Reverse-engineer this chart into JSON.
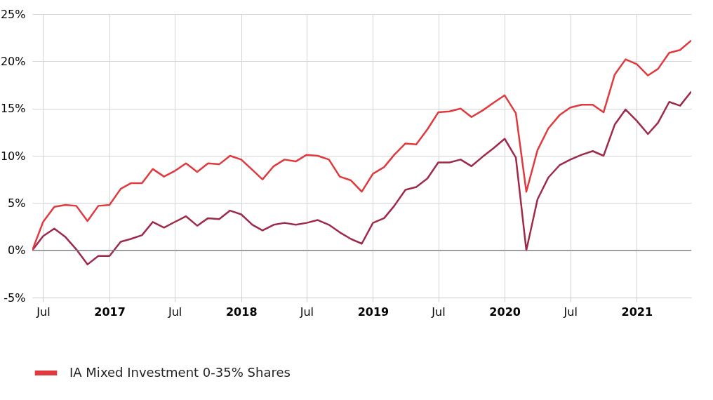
{
  "chart_data": {
    "type": "line",
    "x": [
      "2016-06",
      "2016-07",
      "2016-08",
      "2016-09",
      "2016-10",
      "2016-11",
      "2016-12",
      "2017-01",
      "2017-02",
      "2017-03",
      "2017-04",
      "2017-05",
      "2017-06",
      "2017-07",
      "2017-08",
      "2017-09",
      "2017-10",
      "2017-11",
      "2017-12",
      "2018-01",
      "2018-02",
      "2018-03",
      "2018-04",
      "2018-05",
      "2018-06",
      "2018-07",
      "2018-08",
      "2018-09",
      "2018-10",
      "2018-11",
      "2018-12",
      "2019-01",
      "2019-02",
      "2019-03",
      "2019-04",
      "2019-05",
      "2019-06",
      "2019-07",
      "2019-08",
      "2019-09",
      "2019-10",
      "2019-11",
      "2019-12",
      "2020-01",
      "2020-02",
      "2020-03",
      "2020-04",
      "2020-05",
      "2020-06",
      "2020-07",
      "2020-08",
      "2020-09",
      "2020-10",
      "2020-11",
      "2020-12",
      "2021-01",
      "2021-02",
      "2021-03",
      "2021-04",
      "2021-05",
      "2021-06"
    ],
    "series": [
      {
        "color": "#9e2a4a",
        "values": [
          0,
          1.5,
          2.3,
          1.4,
          0.1,
          -1.5,
          -0.6,
          -0.6,
          0.9,
          1.2,
          1.6,
          3.0,
          2.4,
          3.0,
          3.6,
          2.6,
          3.4,
          3.3,
          4.2,
          3.8,
          2.7,
          2.1,
          2.7,
          2.9,
          2.7,
          2.9,
          3.2,
          2.7,
          1.9,
          1.2,
          0.7,
          2.9,
          3.4,
          4.7,
          6.4,
          6.7,
          7.6,
          9.3,
          9.3,
          9.6,
          8.9,
          9.9,
          10.8,
          11.8,
          9.8,
          0.0,
          5.4,
          7.7,
          9.0,
          9.6,
          10.1,
          10.5,
          10.0,
          13.3,
          14.9,
          13.7,
          12.3,
          13.5,
          15.7,
          15.3,
          16.8
        ]
      },
      {
        "name": "IA Mixed Investment 0-35% Shares",
        "color": "#e0393e",
        "values": [
          0,
          3.0,
          4.6,
          4.8,
          4.7,
          3.1,
          4.7,
          4.8,
          6.5,
          7.1,
          7.1,
          8.6,
          7.8,
          8.4,
          9.2,
          8.3,
          9.2,
          9.1,
          10.0,
          9.6,
          8.5,
          7.5,
          8.9,
          9.6,
          9.4,
          10.1,
          10.0,
          9.6,
          7.8,
          7.4,
          6.2,
          8.1,
          8.8,
          10.1,
          11.3,
          11.2,
          12.8,
          14.6,
          14.7,
          15.0,
          14.1,
          14.8,
          15.6,
          16.4,
          14.5,
          6.2,
          10.6,
          12.9,
          14.3,
          15.1,
          15.4,
          15.4,
          14.6,
          18.6,
          20.2,
          19.7,
          18.5,
          19.2,
          20.9,
          21.2,
          22.2
        ]
      }
    ],
    "xlim": [
      "2016-06",
      "2021-06"
    ],
    "xticks": [
      {
        "value": "2016-07",
        "label": "Jul"
      },
      {
        "value": "2017-01",
        "label": "2017"
      },
      {
        "value": "2017-07",
        "label": "Jul"
      },
      {
        "value": "2018-01",
        "label": "2018"
      },
      {
        "value": "2018-07",
        "label": "Jul"
      },
      {
        "value": "2019-01",
        "label": "2019"
      },
      {
        "value": "2019-07",
        "label": "Jul"
      },
      {
        "value": "2020-01",
        "label": "2020"
      },
      {
        "value": "2020-07",
        "label": "Jul"
      },
      {
        "value": "2021-01",
        "label": "2021"
      }
    ],
    "ylim": [
      -5,
      25
    ],
    "yticks": [
      {
        "value": -5,
        "label": "-5%"
      },
      {
        "value": 0,
        "label": "0%"
      },
      {
        "value": 5,
        "label": "5%"
      },
      {
        "value": 10,
        "label": "10%"
      },
      {
        "value": 15,
        "label": "15%"
      },
      {
        "value": 20,
        "label": "20%"
      },
      {
        "value": 25,
        "label": "25%"
      }
    ],
    "ref_lines": [
      {
        "axis": "y",
        "value": 0,
        "color": "#808080"
      }
    ],
    "grid": true,
    "legend": "bottom left"
  }
}
